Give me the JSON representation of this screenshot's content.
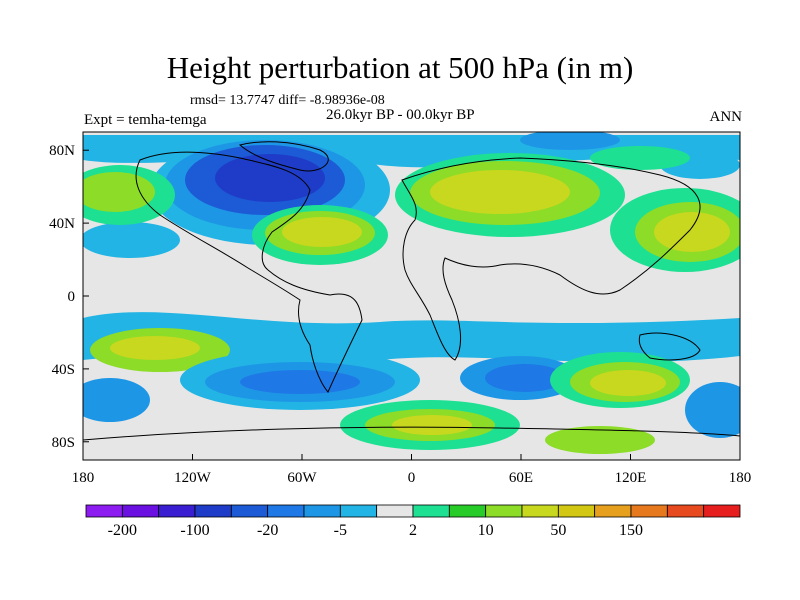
{
  "title": "Height perturbation at 500 hPa (in m)",
  "stats": "rmsd= 13.7747 diff= -8.98936e-08",
  "period": "26.0kyr BP - 00.0kyr BP",
  "experiment": "Expt = temha-temga",
  "season": "ANN",
  "axes": {
    "lon_ticks": [
      "180",
      "120W",
      "60W",
      "0",
      "60E",
      "120E",
      "180"
    ],
    "lat_ticks": [
      "80N",
      "40N",
      "0",
      "40S",
      "80S"
    ],
    "lon_values": [
      -180,
      -120,
      -60,
      0,
      60,
      120,
      180
    ],
    "lat_values": [
      80,
      40,
      0,
      -40,
      -80
    ],
    "lon_range": [
      -180,
      180
    ],
    "lat_range": [
      -90,
      90
    ]
  },
  "colorbar": {
    "labels": [
      "-200",
      "-100",
      "-20",
      "-5",
      "2",
      "10",
      "50",
      "150"
    ],
    "colors": [
      "#8c1cf0",
      "#6a10e0",
      "#3a1ed2",
      "#1e3cc8",
      "#1c5ad6",
      "#1e78e6",
      "#1e96e6",
      "#22b4e4",
      "#e6e6e6",
      "#1ee092",
      "#28cc28",
      "#8cdc28",
      "#c8d81e",
      "#d2c814",
      "#e6a01e",
      "#e6781e",
      "#e64a1e",
      "#e61e1e"
    ]
  },
  "chart_data": {
    "type": "heatmap",
    "variable": "Height perturbation at 500 hPa",
    "units": "m",
    "xlim": [
      -180,
      180
    ],
    "ylim": [
      -90,
      90
    ],
    "levels": [
      -200,
      -100,
      -20,
      -5,
      2,
      10,
      50,
      150
    ],
    "features": [
      {
        "lon": -80,
        "lat": 60,
        "level": -50,
        "note": "negative anomaly over N America / Greenland"
      },
      {
        "lon": -40,
        "lat": 35,
        "level": 30,
        "note": "positive ridge over central N Atlantic"
      },
      {
        "lon": 45,
        "lat": 55,
        "level": 30,
        "note": "positive anomaly over N Europe / W Siberia"
      },
      {
        "lon": 140,
        "lat": 38,
        "level": 25,
        "note": "positive anomaly over NW Pacific"
      },
      {
        "lon": 100,
        "lat": -55,
        "level": 30,
        "note": "positive anomaly over S Indian Ocean"
      },
      {
        "lon": 30,
        "lat": -80,
        "level": 20,
        "note": "positive anomaly over Antarctica"
      },
      {
        "lon": -100,
        "lat": -50,
        "level": -20,
        "note": "negative anomaly over SE Pacific"
      },
      {
        "lon": 40,
        "lat": -45,
        "level": -15,
        "note": "negative anomaly S of Africa"
      }
    ]
  }
}
